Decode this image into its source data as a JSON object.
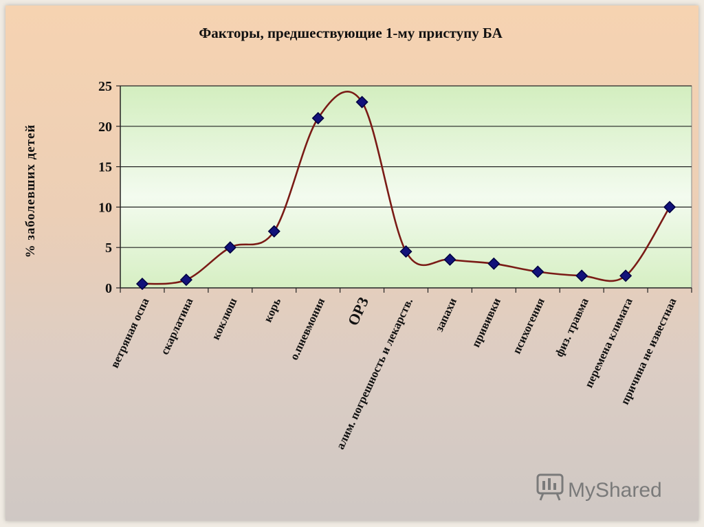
{
  "chart_data": {
    "type": "line",
    "title": "Факторы, предшествующие 1-му приступу БА",
    "ylabel": "% заболевших детей",
    "xlabel": "",
    "ylim": [
      0,
      25
    ],
    "yticks": [
      0,
      5,
      10,
      15,
      20,
      25
    ],
    "grid": true,
    "smooth": true,
    "legend": "none",
    "colors": {
      "line": "#7a1b16",
      "marker": "#12127a",
      "plot_bg_top": "#d7f0c4",
      "plot_bg_mid": "#f2fbee"
    },
    "categories": [
      "ветряная оспа",
      "скарлатина",
      "коклюш",
      "корь",
      "о.пневмония",
      "ОРЗ",
      "алим. погрешность и лекарств.",
      "запахи",
      "прививки",
      "психогения",
      "физ. травма",
      "перемена климата",
      "причина не известнаа"
    ],
    "series": [
      {
        "values": [
          0.5,
          1,
          5,
          7,
          21,
          23,
          4.5,
          3.5,
          3,
          2,
          1.5,
          1.5,
          10
        ]
      }
    ]
  },
  "watermark": {
    "text": "MyShared",
    "icon": "presentation-board-icon"
  }
}
